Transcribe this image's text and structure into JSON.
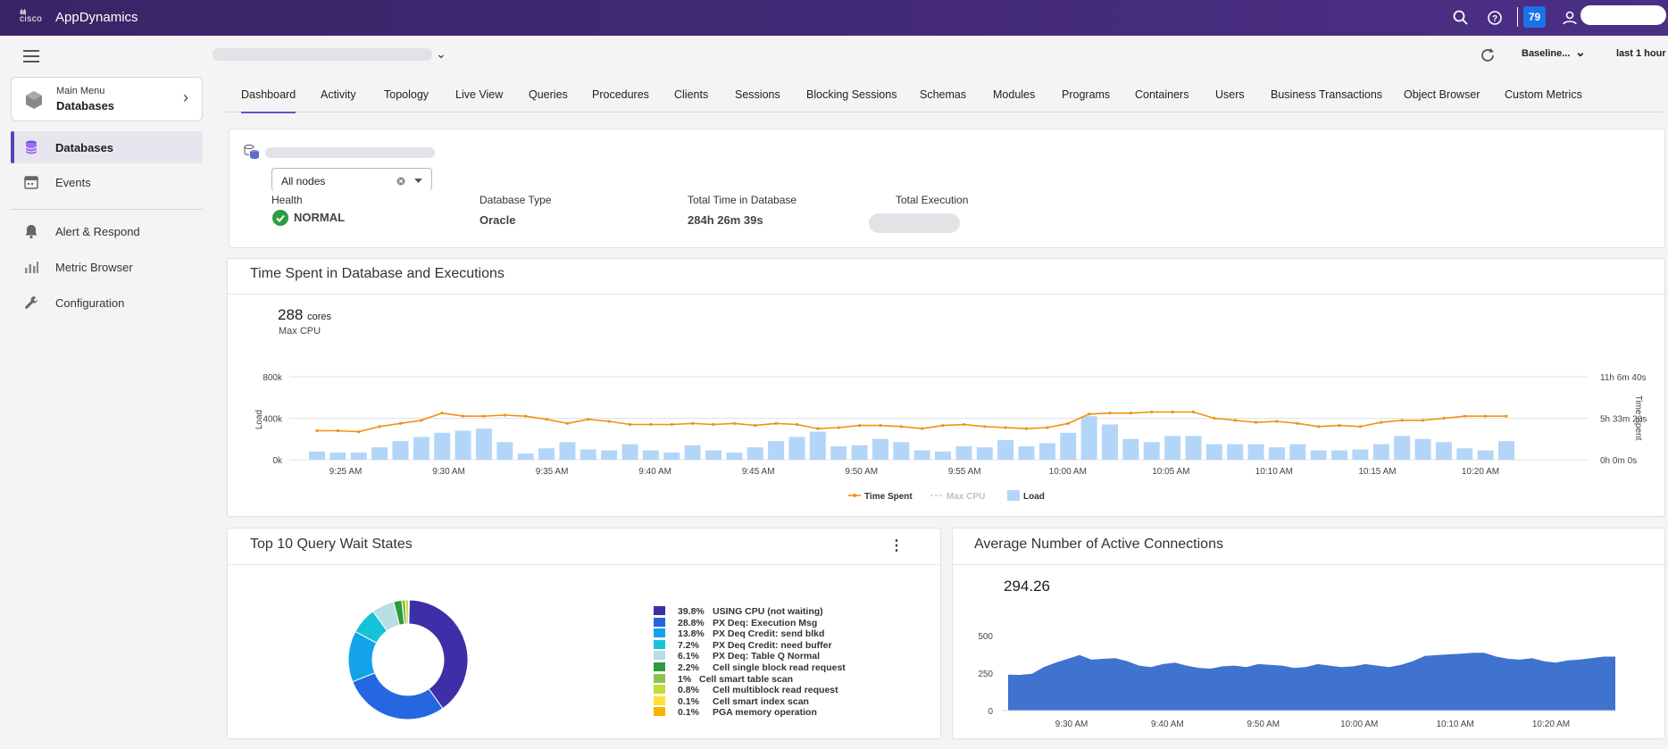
{
  "topbar": {
    "brand": "AppDynamics",
    "logo_text": "cisco",
    "badge_count": "79"
  },
  "sidebar": {
    "main_menu_label": "Main Menu",
    "main_menu_value": "Databases",
    "items": [
      {
        "label": "Databases",
        "icon": "database-icon",
        "active": true
      },
      {
        "label": "Events",
        "icon": "calendar-icon",
        "active": false
      },
      {
        "label": "Alert & Respond",
        "icon": "bell-icon",
        "active": false
      },
      {
        "label": "Metric Browser",
        "icon": "bar-chart-icon",
        "active": false
      },
      {
        "label": "Configuration",
        "icon": "wrench-icon",
        "active": false
      }
    ]
  },
  "header": {
    "baseline": "Baseline...",
    "time_range": "last 1 hour"
  },
  "tabs": [
    "Dashboard",
    "Activity",
    "Topology",
    "Live View",
    "Queries",
    "Procedures",
    "Clients",
    "Sessions",
    "Blocking Sessions",
    "Schemas",
    "Modules",
    "Programs",
    "Containers",
    "Users",
    "Business Transactions",
    "Object Browser",
    "Custom Metrics"
  ],
  "summary": {
    "node_filter": "All nodes",
    "health_label": "Health",
    "health_value": "NORMAL",
    "dbtype_label": "Database Type",
    "dbtype_value": "Oracle",
    "time_label": "Total Time in Database",
    "time_value": "284h 26m 39s",
    "exec_label": "Total Execution"
  },
  "time_spent_card": {
    "title": "Time Spent in Database and Executions",
    "max_cpu_value": "288",
    "max_cpu_unit": "cores",
    "max_cpu_label": "Max CPU"
  },
  "chart_data": [
    {
      "type": "bar",
      "title": "Time Spent in Database and Executions",
      "ylabel": "Load",
      "y2label": "Time Spent",
      "y_ticks": [
        "800k",
        "400k",
        "0k"
      ],
      "y2_ticks": [
        "11h 6m 40s",
        "5h 33m 20s",
        "0h 0m 0s"
      ],
      "ylim": [
        0,
        800000
      ],
      "x_ticks": [
        "9:25 AM",
        "9:30 AM",
        "9:35 AM",
        "9:40 AM",
        "9:45 AM",
        "9:50 AM",
        "9:55 AM",
        "10:00 AM",
        "10:05 AM",
        "10:10 AM",
        "10:15 AM",
        "10:20 AM"
      ],
      "legend": [
        "Time Spent",
        "Max CPU",
        "Load"
      ],
      "series": [
        {
          "name": "Load",
          "type": "bar",
          "values": [
            80000,
            70000,
            70000,
            120000,
            180000,
            220000,
            260000,
            280000,
            300000,
            170000,
            60000,
            110000,
            170000,
            100000,
            90000,
            150000,
            90000,
            70000,
            140000,
            90000,
            70000,
            120000,
            180000,
            220000,
            270000,
            130000,
            140000,
            200000,
            170000,
            90000,
            80000,
            130000,
            120000,
            190000,
            130000,
            160000,
            260000,
            420000,
            340000,
            200000,
            170000,
            230000,
            230000,
            150000,
            150000,
            150000,
            120000,
            150000,
            90000,
            90000,
            100000,
            150000,
            230000,
            200000,
            170000,
            110000,
            90000,
            180000
          ]
        },
        {
          "name": "Time Spent",
          "type": "line",
          "values": [
            280000,
            280000,
            270000,
            320000,
            350000,
            380000,
            450000,
            420000,
            420000,
            430000,
            420000,
            390000,
            350000,
            390000,
            370000,
            340000,
            340000,
            340000,
            350000,
            340000,
            350000,
            330000,
            350000,
            340000,
            300000,
            310000,
            330000,
            330000,
            320000,
            300000,
            330000,
            340000,
            320000,
            310000,
            300000,
            310000,
            350000,
            440000,
            450000,
            450000,
            460000,
            460000,
            460000,
            400000,
            380000,
            360000,
            370000,
            350000,
            320000,
            330000,
            320000,
            360000,
            380000,
            380000,
            400000,
            420000,
            420000,
            420000
          ]
        }
      ]
    },
    {
      "type": "pie",
      "title": "Top 10 Query Wait States",
      "slices": [
        {
          "label": "USING CPU (not waiting)",
          "value": 39.8,
          "pct": "39.8%",
          "color": "#3d2fa8"
        },
        {
          "label": "PX Deq: Execution Msg",
          "value": 28.8,
          "pct": "28.8%",
          "color": "#2467e0"
        },
        {
          "label": "PX Deq Credit: send blkd",
          "value": 13.8,
          "pct": "13.8%",
          "color": "#12a3e8"
        },
        {
          "label": "PX Deq Credit: need buffer",
          "value": 7.2,
          "pct": "7.2%",
          "color": "#17c2d8"
        },
        {
          "label": "PX Deq: Table Q Normal",
          "value": 6.1,
          "pct": "6.1%",
          "color": "#b8dfe3"
        },
        {
          "label": "Cell single block read request",
          "value": 2.2,
          "pct": "2.2%",
          "color": "#2e9a3c"
        },
        {
          "label": "Cell smart table scan",
          "value": 1,
          "pct": "1%",
          "color": "#8bc34a"
        },
        {
          "label": "Cell multiblock read request",
          "value": 0.8,
          "pct": "0.8%",
          "color": "#c6d93a"
        },
        {
          "label": "Cell smart index scan",
          "value": 0.1,
          "pct": "0.1%",
          "color": "#ffe135"
        },
        {
          "label": "PGA memory operation",
          "value": 0.1,
          "pct": "0.1%",
          "color": "#f5b400"
        }
      ]
    },
    {
      "type": "area",
      "title": "Average Number of Active Connections",
      "headline": "294.26",
      "y_ticks": [
        "500",
        "250",
        "0"
      ],
      "ylim": [
        0,
        500
      ],
      "x_ticks": [
        "9:30 AM",
        "9:40 AM",
        "9:50 AM",
        "10:00 AM",
        "10:10 AM",
        "10:20 AM"
      ],
      "values": [
        240,
        238,
        245,
        290,
        320,
        345,
        370,
        340,
        345,
        350,
        330,
        300,
        290,
        310,
        320,
        300,
        285,
        280,
        295,
        300,
        290,
        310,
        305,
        300,
        285,
        290,
        310,
        300,
        290,
        295,
        310,
        300,
        290,
        305,
        330,
        365,
        370,
        375,
        380,
        385,
        385,
        360,
        345,
        340,
        350,
        330,
        320,
        335,
        340,
        350,
        360,
        360
      ]
    }
  ],
  "connections_card": {
    "title": "Average Number of Active Connections",
    "headline": "294.26"
  },
  "wait_card": {
    "title": "Top 10 Query Wait States"
  },
  "colors": {
    "topbar": "#3f2675",
    "accent": "#6a4fc8",
    "bar": "#b3d6f8",
    "line": "#f29111",
    "area": "#3f73cf",
    "health": "#2d9b43"
  }
}
